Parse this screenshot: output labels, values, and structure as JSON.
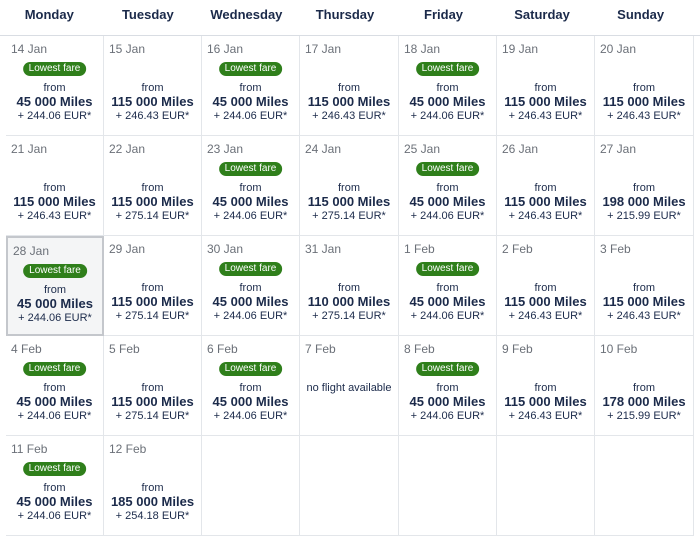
{
  "days_of_week": [
    "Monday",
    "Tuesday",
    "Wednesday",
    "Thursday",
    "Friday",
    "Saturday",
    "Sunday"
  ],
  "badge_label": "Lowest fare",
  "from_label": "from",
  "no_flight_label": "no flight available",
  "selected_date": "28 Jan",
  "weeks": [
    [
      {
        "date": "14 Jan",
        "lowest": true,
        "miles": "45 000 Miles",
        "tax": "+ 244.06 EUR*"
      },
      {
        "date": "15 Jan",
        "lowest": false,
        "miles": "115 000 Miles",
        "tax": "+ 246.43 EUR*"
      },
      {
        "date": "16 Jan",
        "lowest": true,
        "miles": "45 000 Miles",
        "tax": "+ 244.06 EUR*"
      },
      {
        "date": "17 Jan",
        "lowest": false,
        "miles": "115 000 Miles",
        "tax": "+ 246.43 EUR*"
      },
      {
        "date": "18 Jan",
        "lowest": true,
        "miles": "45 000 Miles",
        "tax": "+ 244.06 EUR*"
      },
      {
        "date": "19 Jan",
        "lowest": false,
        "miles": "115 000 Miles",
        "tax": "+ 246.43 EUR*"
      },
      {
        "date": "20 Jan",
        "lowest": false,
        "miles": "115 000 Miles",
        "tax": "+ 246.43 EUR*"
      }
    ],
    [
      {
        "date": "21 Jan",
        "lowest": false,
        "miles": "115 000 Miles",
        "tax": "+ 246.43 EUR*"
      },
      {
        "date": "22 Jan",
        "lowest": false,
        "miles": "115 000 Miles",
        "tax": "+ 275.14 EUR*"
      },
      {
        "date": "23 Jan",
        "lowest": true,
        "miles": "45 000 Miles",
        "tax": "+ 244.06 EUR*"
      },
      {
        "date": "24 Jan",
        "lowest": false,
        "miles": "115 000 Miles",
        "tax": "+ 275.14 EUR*"
      },
      {
        "date": "25 Jan",
        "lowest": true,
        "miles": "45 000 Miles",
        "tax": "+ 244.06 EUR*"
      },
      {
        "date": "26 Jan",
        "lowest": false,
        "miles": "115 000 Miles",
        "tax": "+ 246.43 EUR*"
      },
      {
        "date": "27 Jan",
        "lowest": false,
        "miles": "198 000 Miles",
        "tax": "+ 215.99 EUR*"
      }
    ],
    [
      {
        "date": "28 Jan",
        "lowest": true,
        "miles": "45 000 Miles",
        "tax": "+ 244.06 EUR*"
      },
      {
        "date": "29 Jan",
        "lowest": false,
        "miles": "115 000 Miles",
        "tax": "+ 275.14 EUR*"
      },
      {
        "date": "30 Jan",
        "lowest": true,
        "miles": "45 000 Miles",
        "tax": "+ 244.06 EUR*"
      },
      {
        "date": "31 Jan",
        "lowest": false,
        "miles": "110 000 Miles",
        "tax": "+ 275.14 EUR*"
      },
      {
        "date": "1 Feb",
        "lowest": true,
        "miles": "45 000 Miles",
        "tax": "+ 244.06 EUR*"
      },
      {
        "date": "2 Feb",
        "lowest": false,
        "miles": "115 000 Miles",
        "tax": "+ 246.43 EUR*"
      },
      {
        "date": "3 Feb",
        "lowest": false,
        "miles": "115 000 Miles",
        "tax": "+ 246.43 EUR*"
      }
    ],
    [
      {
        "date": "4 Feb",
        "lowest": true,
        "miles": "45 000 Miles",
        "tax": "+ 244.06 EUR*"
      },
      {
        "date": "5 Feb",
        "lowest": false,
        "miles": "115 000 Miles",
        "tax": "+ 275.14 EUR*"
      },
      {
        "date": "6 Feb",
        "lowest": true,
        "miles": "45 000 Miles",
        "tax": "+ 244.06 EUR*"
      },
      {
        "date": "7 Feb",
        "available": false
      },
      {
        "date": "8 Feb",
        "lowest": true,
        "miles": "45 000 Miles",
        "tax": "+ 244.06 EUR*"
      },
      {
        "date": "9 Feb",
        "lowest": false,
        "miles": "115 000 Miles",
        "tax": "+ 246.43 EUR*"
      },
      {
        "date": "10 Feb",
        "lowest": false,
        "miles": "178 000 Miles",
        "tax": "+ 215.99 EUR*"
      }
    ],
    [
      {
        "date": "11 Feb",
        "lowest": true,
        "miles": "45 000 Miles",
        "tax": "+ 244.06 EUR*"
      },
      {
        "date": "12 Feb",
        "lowest": false,
        "miles": "185 000 Miles",
        "tax": "+ 254.18 EUR*"
      },
      {
        "empty": true
      },
      {
        "empty": true
      },
      {
        "empty": true
      },
      {
        "empty": true
      },
      {
        "empty": true
      }
    ]
  ]
}
